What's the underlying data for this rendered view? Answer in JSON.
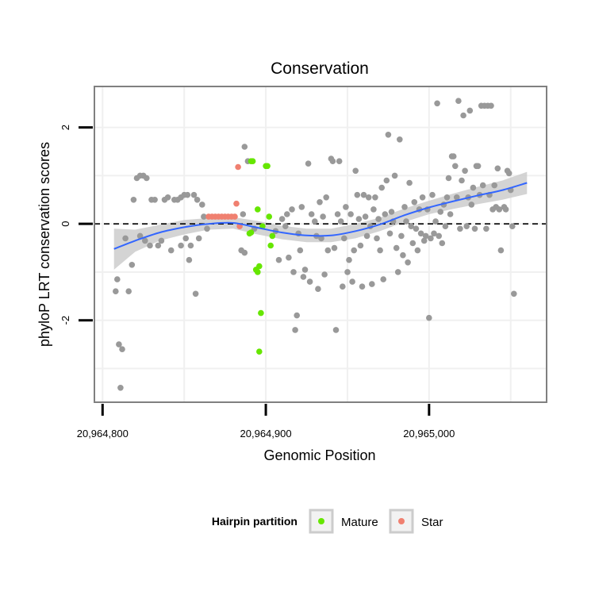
{
  "chart_data": {
    "type": "scatter",
    "title": "Conservation",
    "xlabel": "Genomic Position",
    "ylabel": "phyloP LRT conservation scores",
    "xlim": [
      20964795,
      20965072
    ],
    "ylim": [
      -3.7,
      2.85
    ],
    "x_ticks": [
      {
        "value": 20964800,
        "label": "20,964,800"
      },
      {
        "value": 20964900,
        "label": "20,964,900"
      },
      {
        "value": 20965000,
        "label": "20,965,000"
      }
    ],
    "y_ticks": [
      {
        "value": -2,
        "label": "-2"
      },
      {
        "value": 0,
        "label": "0"
      },
      {
        "value": 2,
        "label": "2"
      }
    ],
    "grid": true,
    "reference_line": {
      "y": 0,
      "style": "dashed",
      "color": "#000000"
    },
    "legend": {
      "title": "Hairpin partition",
      "position": "bottom",
      "entries": [
        {
          "label": "Mature",
          "color": "#66e600"
        },
        {
          "label": "Star",
          "color": "#f08070"
        }
      ]
    },
    "colors": {
      "other": "#999999",
      "smooth_line": "#3366ff",
      "ribbon": "#cccccc",
      "panel_border": "#808080"
    },
    "smooth": {
      "x": [
        20964807,
        20964820,
        20964835,
        20964850,
        20964865,
        20964880,
        20964895,
        20964910,
        20964925,
        20964940,
        20964955,
        20964970,
        20964985,
        20965000,
        20965015,
        20965030,
        20965045,
        20965060
      ],
      "y": [
        -0.52,
        -0.35,
        -0.18,
        -0.07,
        0.0,
        0.02,
        -0.08,
        -0.18,
        -0.24,
        -0.24,
        -0.15,
        -0.01,
        0.18,
        0.34,
        0.47,
        0.59,
        0.7,
        0.85
      ],
      "ymin": [
        -0.95,
        -0.58,
        -0.35,
        -0.22,
        -0.12,
        -0.1,
        -0.22,
        -0.32,
        -0.38,
        -0.38,
        -0.3,
        -0.15,
        0.04,
        0.2,
        0.31,
        0.41,
        0.5,
        0.62
      ],
      "ymax": [
        -0.1,
        -0.12,
        -0.02,
        0.08,
        0.12,
        0.14,
        0.06,
        -0.04,
        -0.1,
        -0.1,
        0.0,
        0.13,
        0.32,
        0.48,
        0.63,
        0.77,
        0.9,
        1.08
      ]
    },
    "series": [
      {
        "name": "Mature",
        "color": "#66e600",
        "points": [
          [
            20964891,
            1.3
          ],
          [
            20964892,
            1.3
          ],
          [
            20964900,
            1.2
          ],
          [
            20964901,
            1.2
          ],
          [
            20964895,
            0.3
          ],
          [
            20964902,
            0.15
          ],
          [
            20964890,
            -0.2
          ],
          [
            20964891,
            -0.18
          ],
          [
            20964898,
            -0.05
          ],
          [
            20964904,
            -0.25
          ],
          [
            20964903,
            -0.45
          ],
          [
            20964894,
            -0.95
          ],
          [
            20964895,
            -1.0
          ],
          [
            20964896,
            -0.88
          ],
          [
            20964897,
            -1.85
          ],
          [
            20964896,
            -2.65
          ]
        ]
      },
      {
        "name": "Star",
        "color": "#f08070",
        "points": [
          [
            20964865,
            0.15
          ],
          [
            20964867,
            0.15
          ],
          [
            20964869,
            0.15
          ],
          [
            20964871,
            0.15
          ],
          [
            20964873,
            0.15
          ],
          [
            20964875,
            0.15
          ],
          [
            20964877,
            0.15
          ],
          [
            20964879,
            0.15
          ],
          [
            20964881,
            0.15
          ],
          [
            20964883,
            1.18
          ],
          [
            20964882,
            0.42
          ],
          [
            20964884,
            -0.05
          ]
        ]
      },
      {
        "name": "",
        "color": "#999999",
        "points": [
          [
            20964808,
            -1.4
          ],
          [
            20964809,
            -1.15
          ],
          [
            20964810,
            -2.5
          ],
          [
            20964811,
            -3.4
          ],
          [
            20964812,
            -2.6
          ],
          [
            20964814,
            -0.3
          ],
          [
            20964816,
            -1.4
          ],
          [
            20964818,
            -0.85
          ],
          [
            20964819,
            0.5
          ],
          [
            20964821,
            0.95
          ],
          [
            20964823,
            1.0
          ],
          [
            20964825,
            1.0
          ],
          [
            20964827,
            0.95
          ],
          [
            20964823,
            -0.25
          ],
          [
            20964826,
            -0.35
          ],
          [
            20964829,
            -0.45
          ],
          [
            20964830,
            0.5
          ],
          [
            20964832,
            0.5
          ],
          [
            20964834,
            -0.45
          ],
          [
            20964836,
            -0.35
          ],
          [
            20964838,
            0.5
          ],
          [
            20964840,
            0.55
          ],
          [
            20964842,
            -0.55
          ],
          [
            20964844,
            0.5
          ],
          [
            20964846,
            0.5
          ],
          [
            20964848,
            0.55
          ],
          [
            20964850,
            0.6
          ],
          [
            20964852,
            0.6
          ],
          [
            20964848,
            -0.45
          ],
          [
            20964851,
            -0.3
          ],
          [
            20964853,
            -0.75
          ],
          [
            20964854,
            -0.45
          ],
          [
            20964856,
            0.6
          ],
          [
            20964858,
            0.5
          ],
          [
            20964857,
            -1.45
          ],
          [
            20964859,
            -0.3
          ],
          [
            20964862,
            0.15
          ],
          [
            20964864,
            -0.1
          ],
          [
            20964861,
            0.4
          ],
          [
            20964885,
            -0.55
          ],
          [
            20964887,
            -0.6
          ],
          [
            20964886,
            0.2
          ],
          [
            20964887,
            1.6
          ],
          [
            20964889,
            1.3
          ],
          [
            20964893,
            -0.1
          ],
          [
            20964906,
            -0.15
          ],
          [
            20964908,
            -0.75
          ],
          [
            20964910,
            0.1
          ],
          [
            20964912,
            -0.05
          ],
          [
            20964913,
            0.2
          ],
          [
            20964914,
            -0.7
          ],
          [
            20964916,
            0.3
          ],
          [
            20964918,
            -2.2
          ],
          [
            20964919,
            -1.9
          ],
          [
            20964917,
            -1.0
          ],
          [
            20964920,
            -0.2
          ],
          [
            20964921,
            -0.55
          ],
          [
            20964922,
            0.35
          ],
          [
            20964923,
            -1.1
          ],
          [
            20964924,
            -0.95
          ],
          [
            20964926,
            1.25
          ],
          [
            20964927,
            -1.2
          ],
          [
            20964928,
            0.2
          ],
          [
            20964930,
            0.05
          ],
          [
            20964931,
            -0.25
          ],
          [
            20964932,
            -1.35
          ],
          [
            20964933,
            0.45
          ],
          [
            20964934,
            -0.3
          ],
          [
            20964935,
            0.15
          ],
          [
            20964936,
            -1.05
          ],
          [
            20964937,
            0.55
          ],
          [
            20964938,
            -0.55
          ],
          [
            20964940,
            1.35
          ],
          [
            20964941,
            1.3
          ],
          [
            20964942,
            -0.5
          ],
          [
            20964943,
            -2.2
          ],
          [
            20964944,
            0.2
          ],
          [
            20964945,
            1.3
          ],
          [
            20964946,
            0.05
          ],
          [
            20964947,
            -1.3
          ],
          [
            20964948,
            -0.3
          ],
          [
            20964949,
            0.35
          ],
          [
            20964950,
            -1.0
          ],
          [
            20964951,
            -0.75
          ],
          [
            20964952,
            0.2
          ],
          [
            20964953,
            -1.2
          ],
          [
            20964954,
            -0.55
          ],
          [
            20964955,
            1.1
          ],
          [
            20964956,
            0.6
          ],
          [
            20964957,
            0.1
          ],
          [
            20964958,
            -0.45
          ],
          [
            20964959,
            -1.3
          ],
          [
            20964960,
            0.6
          ],
          [
            20964961,
            0.15
          ],
          [
            20964962,
            -0.25
          ],
          [
            20964963,
            0.55
          ],
          [
            20964964,
            -0.05
          ],
          [
            20964965,
            -1.25
          ],
          [
            20964966,
            0.3
          ],
          [
            20964967,
            0.55
          ],
          [
            20964968,
            -0.3
          ],
          [
            20964969,
            0.1
          ],
          [
            20964970,
            -0.55
          ],
          [
            20964971,
            0.75
          ],
          [
            20964972,
            -1.15
          ],
          [
            20964973,
            0.2
          ],
          [
            20964974,
            0.9
          ],
          [
            20964975,
            1.85
          ],
          [
            20964976,
            -0.2
          ],
          [
            20964977,
            0.25
          ],
          [
            20964978,
            0.05
          ],
          [
            20964979,
            1.0
          ],
          [
            20964980,
            -0.5
          ],
          [
            20964981,
            -1.0
          ],
          [
            20964982,
            1.75
          ],
          [
            20964983,
            -0.25
          ],
          [
            20964984,
            -0.65
          ],
          [
            20964985,
            0.35
          ],
          [
            20964986,
            0.05
          ],
          [
            20964987,
            -0.8
          ],
          [
            20964988,
            0.85
          ],
          [
            20964989,
            -0.05
          ],
          [
            20964990,
            -0.4
          ],
          [
            20964991,
            0.45
          ],
          [
            20964992,
            -0.1
          ],
          [
            20964993,
            -0.55
          ],
          [
            20964994,
            0.3
          ],
          [
            20964995,
            -0.2
          ],
          [
            20964996,
            0.55
          ],
          [
            20964997,
            -0.35
          ],
          [
            20964998,
            -0.25
          ],
          [
            20964999,
            0.3
          ],
          [
            20965000,
            -1.95
          ],
          [
            20965001,
            -0.3
          ],
          [
            20965002,
            0.6
          ],
          [
            20965003,
            -0.2
          ],
          [
            20965004,
            0.05
          ],
          [
            20965005,
            2.5
          ],
          [
            20965006,
            -0.25
          ],
          [
            20965007,
            0.25
          ],
          [
            20965008,
            -0.4
          ],
          [
            20965009,
            0.4
          ],
          [
            20965010,
            -0.05
          ],
          [
            20965011,
            0.55
          ],
          [
            20965012,
            0.95
          ],
          [
            20965013,
            0.2
          ],
          [
            20965014,
            1.4
          ],
          [
            20965015,
            1.4
          ],
          [
            20965016,
            1.2
          ],
          [
            20965017,
            0.55
          ],
          [
            20965018,
            2.55
          ],
          [
            20965019,
            -0.1
          ],
          [
            20965020,
            0.9
          ],
          [
            20965021,
            2.25
          ],
          [
            20965022,
            1.1
          ],
          [
            20965023,
            -0.05
          ],
          [
            20965024,
            0.55
          ],
          [
            20965025,
            2.35
          ],
          [
            20965026,
            0.4
          ],
          [
            20965027,
            0.75
          ],
          [
            20965028,
            -0.1
          ],
          [
            20965029,
            1.2
          ],
          [
            20965030,
            1.2
          ],
          [
            20965031,
            0.6
          ],
          [
            20965032,
            2.45
          ],
          [
            20965033,
            0.8
          ],
          [
            20965034,
            2.45
          ],
          [
            20965035,
            -0.1
          ],
          [
            20965036,
            2.45
          ],
          [
            20965037,
            0.6
          ],
          [
            20965038,
            2.45
          ],
          [
            20965039,
            0.3
          ],
          [
            20965040,
            0.8
          ],
          [
            20965041,
            0.35
          ],
          [
            20965042,
            1.15
          ],
          [
            20965043,
            0.3
          ],
          [
            20965044,
            -0.55
          ],
          [
            20965046,
            0.35
          ],
          [
            20965047,
            0.3
          ],
          [
            20965048,
            1.1
          ],
          [
            20965049,
            1.05
          ],
          [
            20965050,
            0.7
          ],
          [
            20965051,
            -0.05
          ],
          [
            20965052,
            -1.45
          ]
        ]
      }
    ]
  }
}
